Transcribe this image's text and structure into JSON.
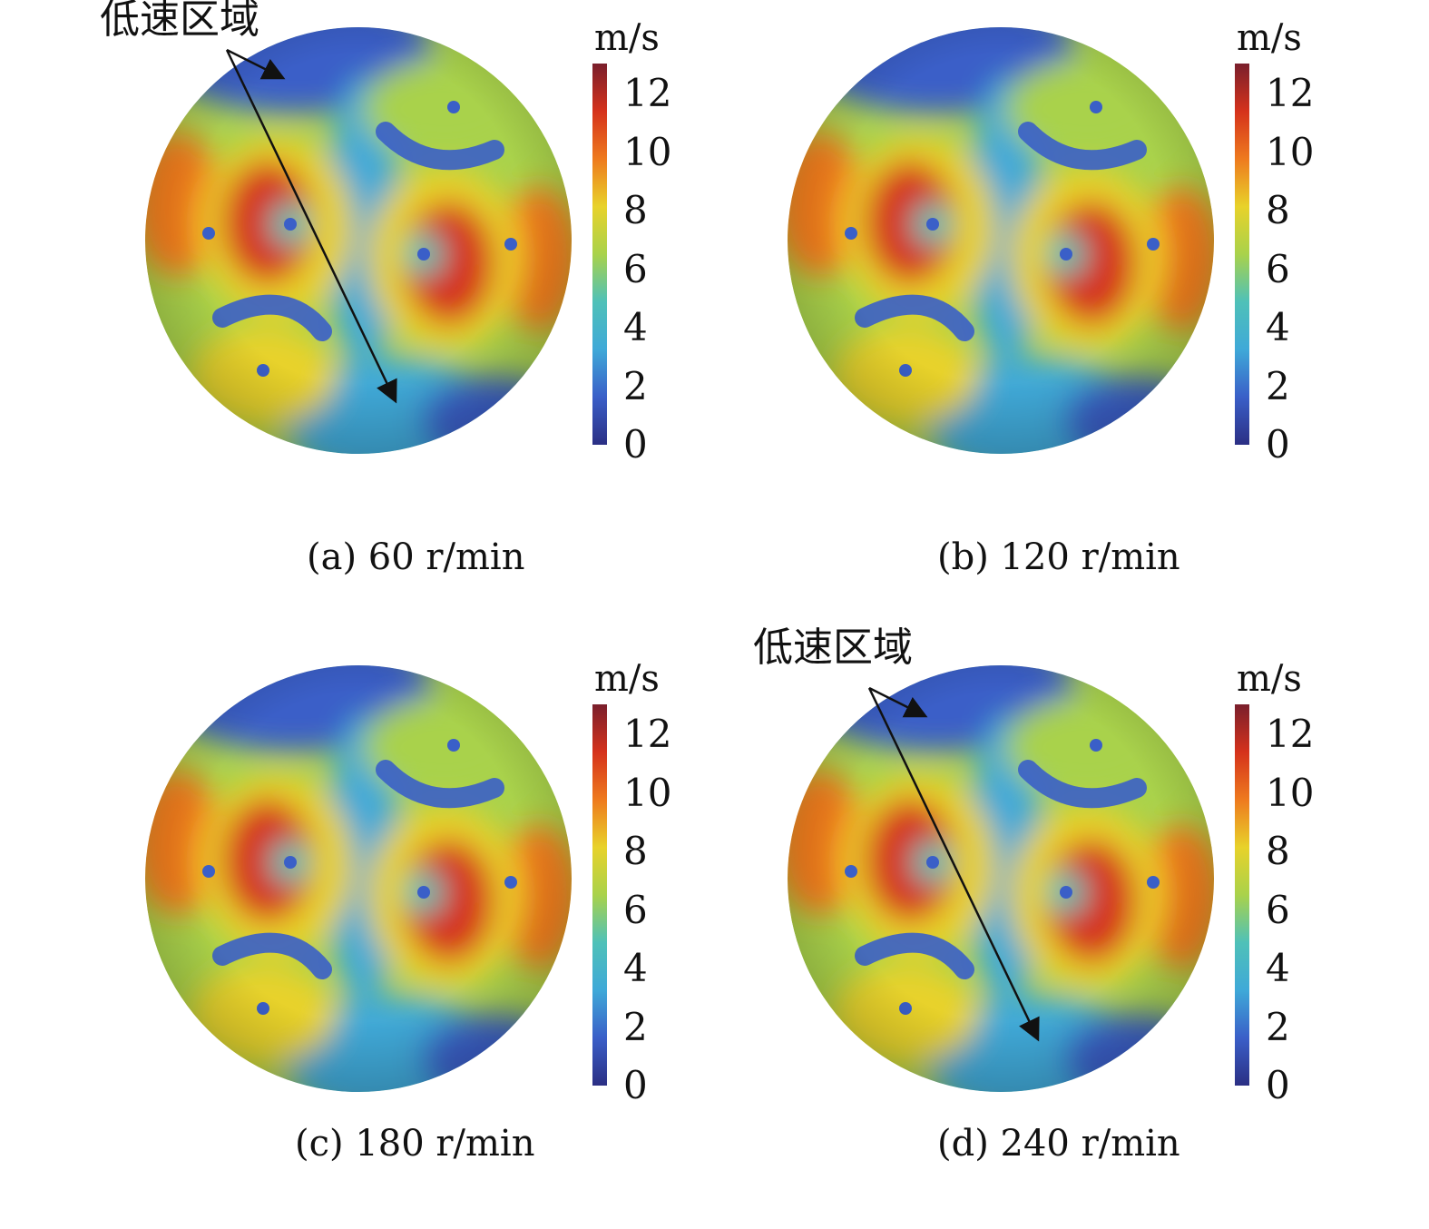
{
  "colors": {
    "scale": [
      "#2b2f84",
      "#3a5fc8",
      "#3fa9d8",
      "#4fc1b8",
      "#a9d24b",
      "#e8d22a",
      "#ee7a1e",
      "#d5321c",
      "#7a1f2c"
    ]
  },
  "unit_label": "m/s",
  "ticks": [
    "12",
    "10",
    "8",
    "6",
    "4",
    "2",
    "0"
  ],
  "annotation_label": "低速区域",
  "panels": [
    {
      "caption": "(a) 60 r/min",
      "speed_rpm": 60,
      "annotated": true
    },
    {
      "caption": "(b) 120 r/min",
      "speed_rpm": 120,
      "annotated": false
    },
    {
      "caption": "(c) 180 r/min",
      "speed_rpm": 180,
      "annotated": false
    },
    {
      "caption": "(d) 240 r/min",
      "speed_rpm": 240,
      "annotated": true
    }
  ]
}
